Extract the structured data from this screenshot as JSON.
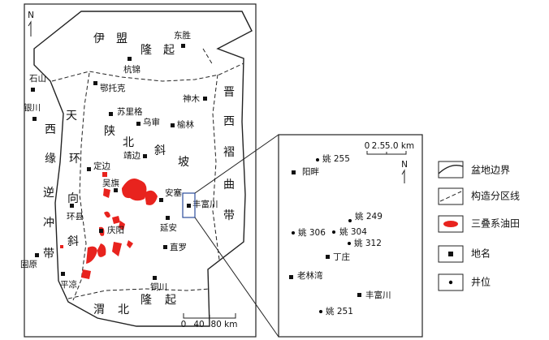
{
  "main_map": {
    "north": "N",
    "regions": [
      [
        "伊",
        "盟",
        "隆",
        "起"
      ],
      [
        "天",
        "环",
        "向",
        "斜"
      ],
      [
        "西",
        "缘",
        "逆",
        "冲",
        "带"
      ],
      [
        "陕",
        "北",
        "斜",
        "坡"
      ],
      [
        "晋",
        "西",
        "褶",
        "曲",
        "带"
      ],
      [
        "渭",
        "北",
        "隆",
        "起"
      ]
    ],
    "places": [
      "东胜",
      "杭锦",
      "鄂托克",
      "石山",
      "银川",
      "神木",
      "苏里格",
      "乌审",
      "榆林",
      "定边",
      "吴旗",
      "靖边",
      "安塞",
      "丰富川",
      "环县",
      "延安",
      "庆阳",
      "直罗",
      "固原",
      "平凉",
      "铜川"
    ],
    "scale": [
      "0",
      "40",
      "80 km"
    ]
  },
  "inset": {
    "north": "N",
    "scale": [
      "0",
      "2.5",
      "5.0 km"
    ],
    "wells": [
      "姚 255",
      "姚 249",
      "姚 306",
      "姚 304",
      "姚 312",
      "姚 251"
    ],
    "places": [
      "阳畔",
      "丁庄",
      "老林湾",
      "丰富川"
    ]
  },
  "legend": [
    "盆地边界",
    "构造分区线",
    "三叠系油田",
    "地名",
    "井位"
  ]
}
